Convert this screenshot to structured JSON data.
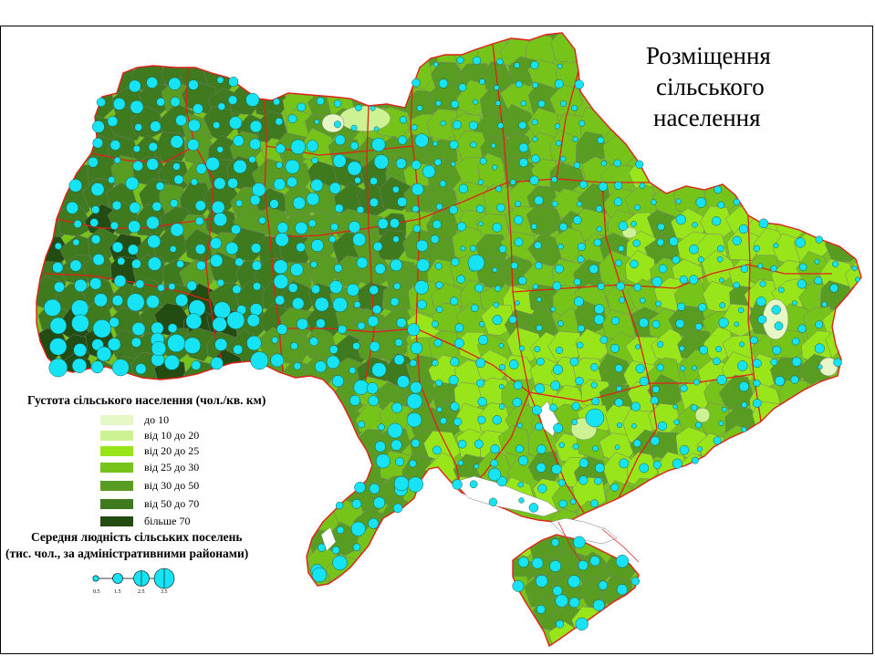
{
  "map": {
    "title_lines": [
      "Розміщення",
      "сільського",
      "населення"
    ],
    "density_legend": {
      "heading": "Густота сільського населення (чол./кв. км)",
      "classes": [
        {
          "label": "до 10",
          "color": "#e6f8c6"
        },
        {
          "label": "від 10 до 20",
          "color": "#cdf293"
        },
        {
          "label": "від 20 до 25",
          "color": "#98e61a"
        },
        {
          "label": "від 25 до 30",
          "color": "#76c41a"
        },
        {
          "label": "від 30 до 50",
          "color": "#599c22"
        },
        {
          "label": "від 50 до 70",
          "color": "#3f7a1e"
        },
        {
          "label": "більше 70",
          "color": "#234c12"
        }
      ]
    },
    "settlement_legend": {
      "heading_line1": "Середня людність сільських поселень",
      "heading_line2": "(тис. чол., за адміністративними районами)",
      "ticks": [
        "0.5",
        "1.5",
        "2.5",
        "3.5"
      ],
      "circle_color": "#16e4f5"
    },
    "colors": {
      "region_border": "#e0201a",
      "district_border": "#7a7a7a",
      "water": "#ffffff"
    }
  }
}
